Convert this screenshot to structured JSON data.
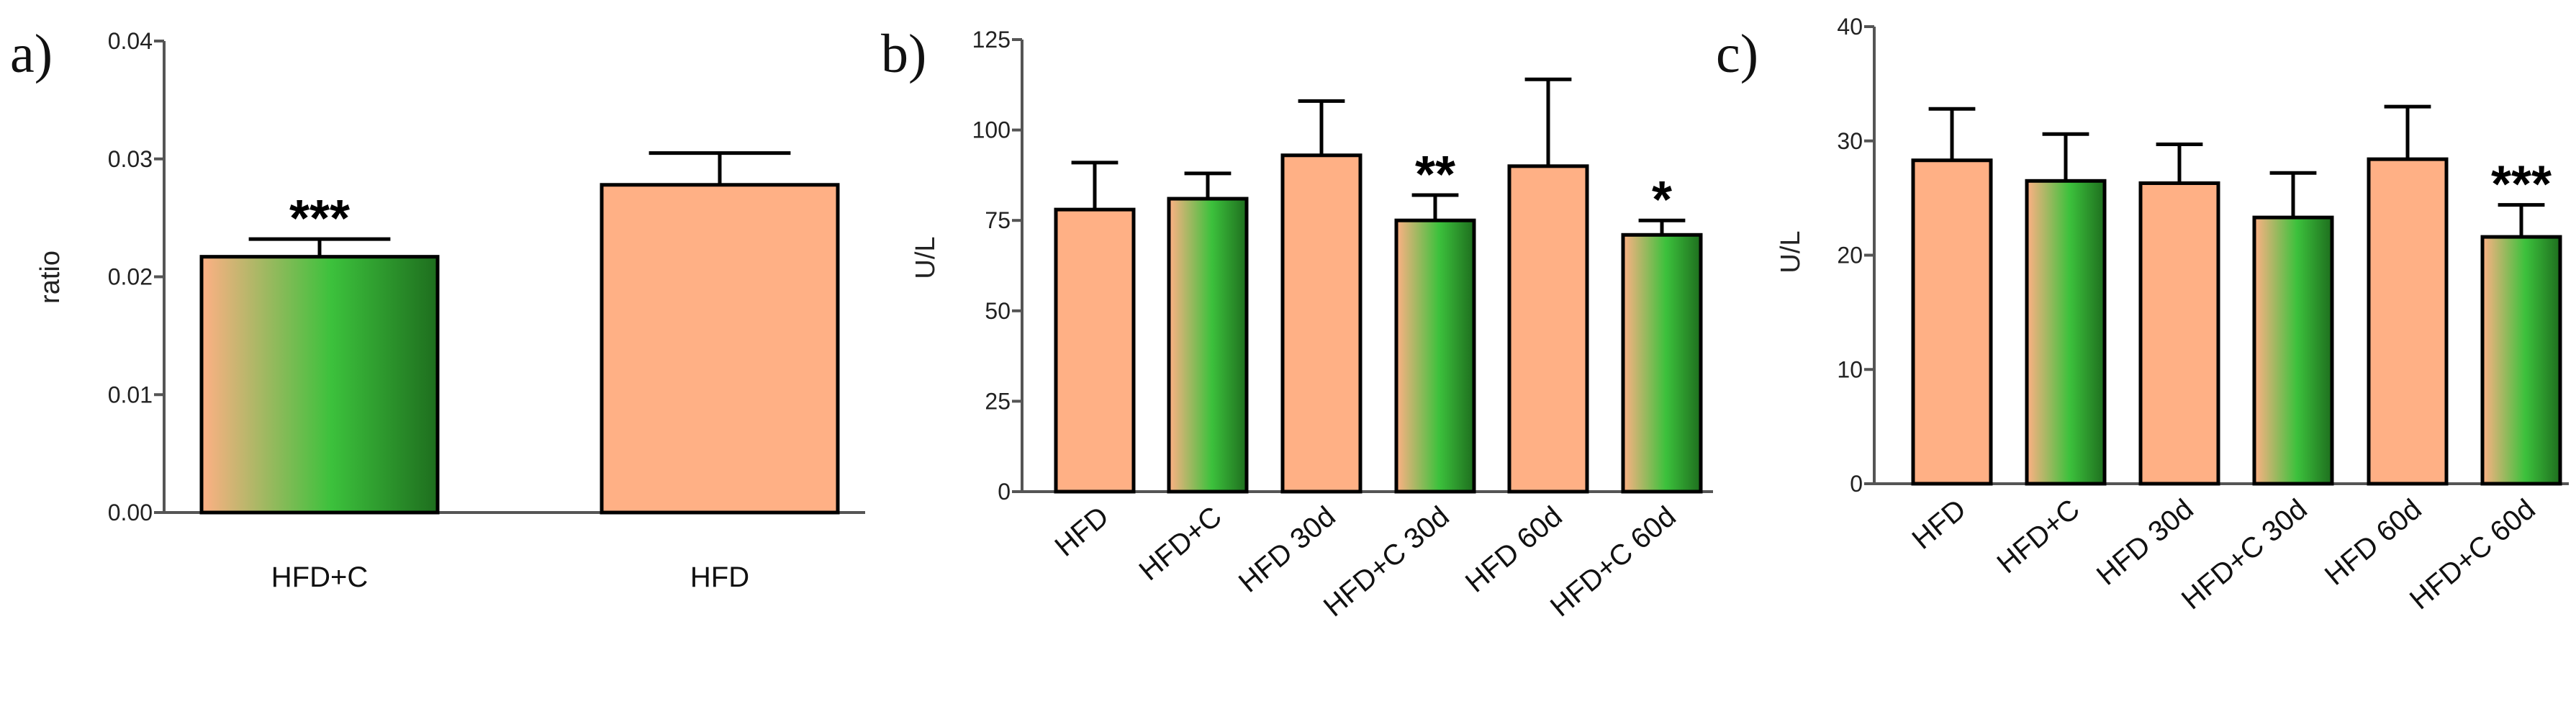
{
  "colors": {
    "peach": "#FFB085",
    "green_light": "#3CC13C",
    "green_dark": "#1E6E1E",
    "axis": "#555555",
    "outline": "#000000"
  },
  "chart_data": [
    {
      "type": "bar",
      "panel_label": "a)",
      "title": "",
      "xlabel": "",
      "ylabel": "ratio",
      "ylim": [
        0,
        0.04
      ],
      "yticks": [
        "0.00",
        "0.01",
        "0.02",
        "0.03",
        "0.04"
      ],
      "ytick_values": [
        0,
        0.01,
        0.02,
        0.03,
        0.04
      ],
      "categories": [
        "HFD+C",
        "HFD"
      ],
      "values": [
        0.0217,
        0.0278
      ],
      "errors": [
        0.0015,
        0.0027
      ],
      "fills": [
        "gradient",
        "peach"
      ],
      "significance": [
        "***",
        ""
      ],
      "label_rotation": 0
    },
    {
      "type": "bar",
      "panel_label": "b)",
      "title": "",
      "xlabel": "",
      "ylabel": "U/L",
      "ylim": [
        0,
        125
      ],
      "yticks": [
        "0",
        "25",
        "50",
        "75",
        "100",
        "125"
      ],
      "ytick_values": [
        0,
        25,
        50,
        75,
        100,
        125
      ],
      "categories": [
        "HFD",
        "HFD+C",
        "HFD 30d",
        "HFD+C 30d",
        "HFD 60d",
        "HFD+C 60d"
      ],
      "values": [
        78,
        81,
        93,
        75,
        90,
        71
      ],
      "errors": [
        13,
        7,
        15,
        7,
        24,
        4
      ],
      "fills": [
        "peach",
        "gradient",
        "peach",
        "gradient",
        "peach",
        "gradient"
      ],
      "significance": [
        "",
        "",
        "",
        "**",
        "",
        "*"
      ],
      "label_rotation": -40
    },
    {
      "type": "bar",
      "panel_label": "c)",
      "title": "",
      "xlabel": "",
      "ylabel": "U/L",
      "ylim": [
        0,
        40
      ],
      "yticks": [
        "0",
        "10",
        "20",
        "30",
        "40"
      ],
      "ytick_values": [
        0,
        10,
        20,
        30,
        40
      ],
      "categories": [
        "HFD",
        "HFD+C",
        "HFD 30d",
        "HFD+C 30d",
        "HFD 60d",
        "HFD+C 60d"
      ],
      "values": [
        28.3,
        26.5,
        26.3,
        23.3,
        28.4,
        21.6
      ],
      "errors": [
        4.5,
        4.1,
        3.4,
        3.9,
        4.6,
        2.8
      ],
      "fills": [
        "peach",
        "gradient",
        "peach",
        "gradient",
        "peach",
        "gradient"
      ],
      "significance": [
        "",
        "",
        "",
        "",
        "",
        "***"
      ],
      "label_rotation": -40
    }
  ]
}
